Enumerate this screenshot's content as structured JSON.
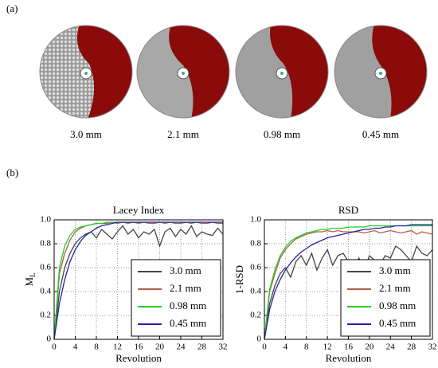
{
  "panel_a": {
    "label": "(a)",
    "samples": [
      "3.0 mm",
      "2.1 mm",
      "0.98 mm",
      "0.45 mm"
    ]
  },
  "panel_b": {
    "label": "(b)"
  },
  "chart_data": [
    {
      "type": "line",
      "title": "Lacey Index",
      "xlabel": "Revolution",
      "ylabel": "M",
      "ylabel_sub": "L",
      "x": [
        0,
        1,
        2,
        3,
        4,
        5,
        6,
        7,
        8,
        9,
        10,
        11,
        12,
        13,
        14,
        15,
        16,
        17,
        18,
        19,
        20,
        21,
        22,
        23,
        24,
        25,
        26,
        27,
        28,
        29,
        30,
        31,
        32
      ],
      "xlim": [
        0,
        32
      ],
      "xticks": [
        0,
        4,
        8,
        12,
        16,
        20,
        24,
        28,
        32
      ],
      "ylim": [
        0,
        1
      ],
      "yticks": [
        0,
        0.2,
        0.4,
        0.6,
        0.8,
        {
          "value": 1,
          "label": "1.0"
        }
      ],
      "grid": true,
      "legend": "lower right",
      "series": [
        {
          "name": "3.0 mm",
          "color": "#444444",
          "values": [
            0,
            0.4,
            0.6,
            0.72,
            0.8,
            0.85,
            0.88,
            0.9,
            0.85,
            0.92,
            0.88,
            0.84,
            0.9,
            0.95,
            0.88,
            0.92,
            0.85,
            0.9,
            0.88,
            0.92,
            0.78,
            0.9,
            0.93,
            0.86,
            0.92,
            0.88,
            0.95,
            0.86,
            0.9,
            0.88,
            0.87,
            0.93,
            0.88
          ]
        },
        {
          "name": "2.1 mm",
          "color": "#b0604f",
          "values": [
            0,
            0.55,
            0.72,
            0.83,
            0.9,
            0.93,
            0.95,
            0.96,
            0.97,
            0.97,
            0.97,
            0.98,
            0.97,
            0.98,
            0.97,
            0.98,
            0.97,
            0.98,
            0.97,
            0.97,
            0.98,
            0.97,
            0.98,
            0.97,
            0.97,
            0.98,
            0.97,
            0.98,
            0.97,
            0.97,
            0.98,
            0.97,
            0.97
          ]
        },
        {
          "name": "0.98 mm",
          "color": "#22cc22",
          "values": [
            0,
            0.6,
            0.78,
            0.87,
            0.92,
            0.94,
            0.95,
            0.96,
            0.97,
            0.97,
            0.98,
            0.98,
            0.98,
            0.98,
            0.98,
            0.98,
            0.98,
            0.98,
            0.98,
            0.98,
            0.98,
            0.98,
            0.98,
            0.98,
            0.98,
            0.98,
            0.98,
            0.98,
            0.98,
            0.98,
            0.98,
            0.98,
            0.98
          ]
        },
        {
          "name": "0.45 mm",
          "color": "#2222aa",
          "values": [
            0,
            0.3,
            0.5,
            0.65,
            0.75,
            0.82,
            0.87,
            0.9,
            0.93,
            0.95,
            0.96,
            0.97,
            0.98,
            0.98,
            0.98,
            0.98,
            0.98,
            0.98,
            0.98,
            0.98,
            0.98,
            0.98,
            0.98,
            0.98,
            0.98,
            0.98,
            0.98,
            0.98,
            0.98,
            0.98,
            0.98,
            0.98,
            0.98
          ]
        }
      ]
    },
    {
      "type": "line",
      "title": "RSD",
      "xlabel": "Revolution",
      "ylabel": "1-RSD",
      "x": [
        0,
        1,
        2,
        3,
        4,
        5,
        6,
        7,
        8,
        9,
        10,
        11,
        12,
        13,
        14,
        15,
        16,
        17,
        18,
        19,
        20,
        21,
        22,
        23,
        24,
        25,
        26,
        27,
        28,
        29,
        30,
        31,
        32
      ],
      "xlim": [
        0,
        32
      ],
      "xticks": [
        0,
        4,
        8,
        12,
        16,
        20,
        24,
        28,
        32
      ],
      "ylim": [
        0,
        1
      ],
      "yticks": [
        0,
        0.2,
        0.4,
        0.6,
        0.8,
        {
          "value": 1,
          "label": "1.0"
        }
      ],
      "grid": true,
      "legend": "lower right",
      "series": [
        {
          "name": "3.0 mm",
          "color": "#444444",
          "values": [
            0,
            0.3,
            0.45,
            0.55,
            0.6,
            0.52,
            0.65,
            0.7,
            0.62,
            0.72,
            0.58,
            0.68,
            0.75,
            0.62,
            0.7,
            0.72,
            0.65,
            0.6,
            0.68,
            0.58,
            0.7,
            0.66,
            0.62,
            0.7,
            0.68,
            0.78,
            0.75,
            0.7,
            0.65,
            0.78,
            0.72,
            0.7,
            0.75
          ]
        },
        {
          "name": "2.1 mm",
          "color": "#b0604f",
          "values": [
            0,
            0.4,
            0.55,
            0.68,
            0.75,
            0.8,
            0.84,
            0.86,
            0.88,
            0.89,
            0.9,
            0.9,
            0.91,
            0.9,
            0.91,
            0.9,
            0.9,
            0.9,
            0.9,
            0.89,
            0.9,
            0.91,
            0.89,
            0.9,
            0.91,
            0.9,
            0.89,
            0.9,
            0.91,
            0.88,
            0.9,
            0.89,
            0.88
          ]
        },
        {
          "name": "0.98 mm",
          "color": "#22cc22",
          "values": [
            0,
            0.42,
            0.58,
            0.7,
            0.77,
            0.82,
            0.85,
            0.87,
            0.89,
            0.9,
            0.91,
            0.92,
            0.92,
            0.93,
            0.93,
            0.93,
            0.94,
            0.94,
            0.94,
            0.94,
            0.95,
            0.95,
            0.95,
            0.95,
            0.95,
            0.95,
            0.95,
            0.95,
            0.95,
            0.95,
            0.95,
            0.95,
            0.95
          ]
        },
        {
          "name": "0.45 mm",
          "color": "#2222aa",
          "values": [
            0,
            0.25,
            0.4,
            0.5,
            0.58,
            0.64,
            0.69,
            0.73,
            0.76,
            0.79,
            0.81,
            0.83,
            0.85,
            0.86,
            0.87,
            0.88,
            0.89,
            0.9,
            0.91,
            0.92,
            0.92,
            0.93,
            0.93,
            0.94,
            0.94,
            0.95,
            0.95,
            0.95,
            0.96,
            0.96,
            0.96,
            0.96,
            0.96
          ]
        }
      ]
    }
  ]
}
